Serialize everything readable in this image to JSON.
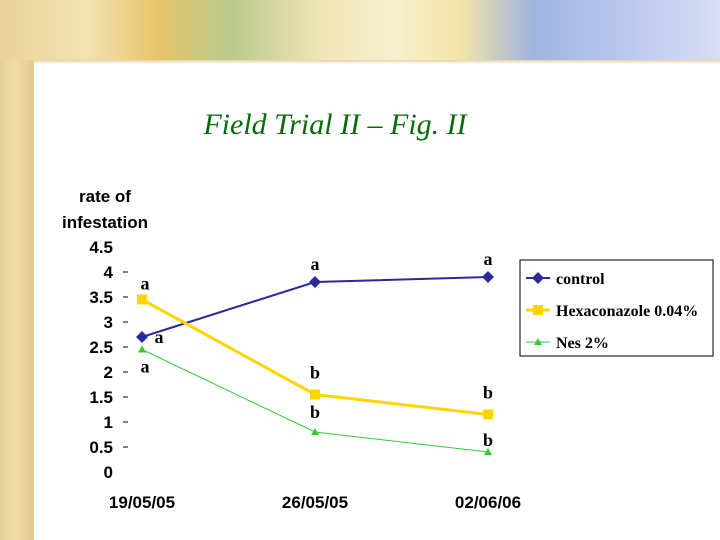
{
  "page_title": "Field Trial II – Fig. II",
  "colors": {
    "control": "#2a2a9a",
    "hexaconazole": "#ffd400",
    "nes": "#33cc33",
    "title": "#0a6b0a"
  },
  "chart_data": {
    "type": "line",
    "title": "Field Trial II – Fig. II",
    "ylabel_lines": [
      "rate of",
      "infestation"
    ],
    "xlabel": "",
    "x": [
      "19/05/05",
      "26/05/05",
      "02/06/06"
    ],
    "ylim": [
      0,
      4.5
    ],
    "yticks": [
      "0",
      "0.5",
      "1",
      "1.5",
      "2",
      "2.5",
      "3",
      "3.5",
      "4",
      "4.5"
    ],
    "grid": false,
    "legend_position": "right",
    "series": [
      {
        "name": "control",
        "values": [
          2.7,
          3.8,
          3.9
        ],
        "marker": "diamond",
        "color": "#2a2a9a",
        "labels": [
          "a",
          "a",
          "a"
        ]
      },
      {
        "name": "Hexaconazole 0.04%",
        "values": [
          3.45,
          1.55,
          1.15
        ],
        "marker": "square",
        "color": "#ffd400",
        "labels": [
          "a",
          "b",
          "b"
        ]
      },
      {
        "name": "Nes 2%",
        "values": [
          2.45,
          0.8,
          0.4
        ],
        "marker": "triangle",
        "color": "#33cc33",
        "labels": [
          "a",
          "b",
          "b"
        ]
      }
    ]
  }
}
